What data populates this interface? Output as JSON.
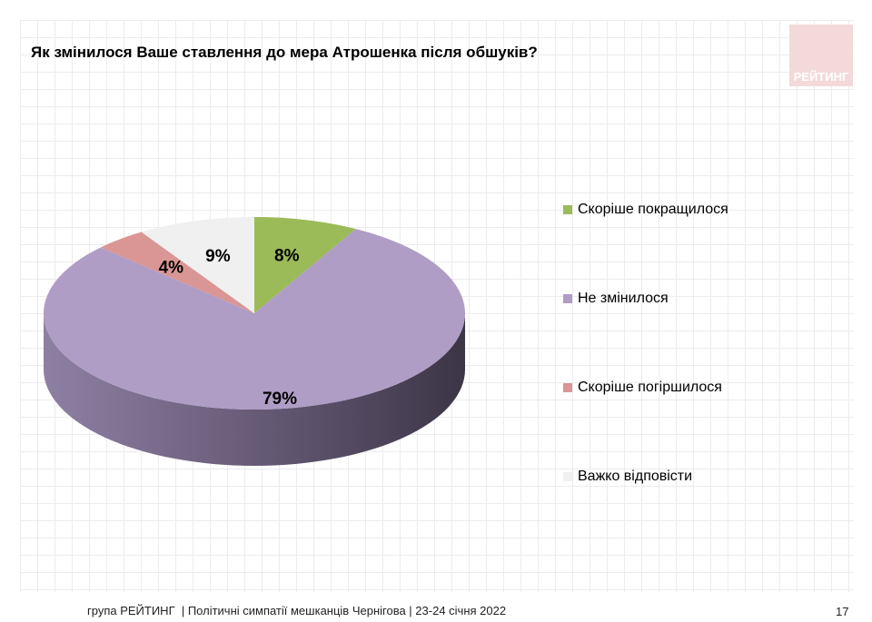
{
  "chart_data": {
    "type": "pie",
    "title": "Як змінилося Ваше ставлення до мера Атрошенка після обшуків?",
    "style": "3d",
    "legend_position": "right",
    "slices": [
      {
        "label": "Скоріше покращилося",
        "value": 8,
        "display": "8%",
        "color": "#9bbb59"
      },
      {
        "label": "Не змінилося",
        "value": 79,
        "display": "79%",
        "color": "#b09dc6"
      },
      {
        "label": "Скоріше погіршилося",
        "value": 4,
        "display": "4%",
        "color": "#d99694"
      },
      {
        "label": "Важко відповісти",
        "value": 9,
        "display": "9%",
        "color": "#f0f0f0"
      }
    ]
  },
  "logo_text": "РЕЙТИНГ",
  "footer": "група РЕЙТИНГ  | Політичні симпатії мешканців Чернігова | 23-24 січня 2022",
  "page_number": "17"
}
